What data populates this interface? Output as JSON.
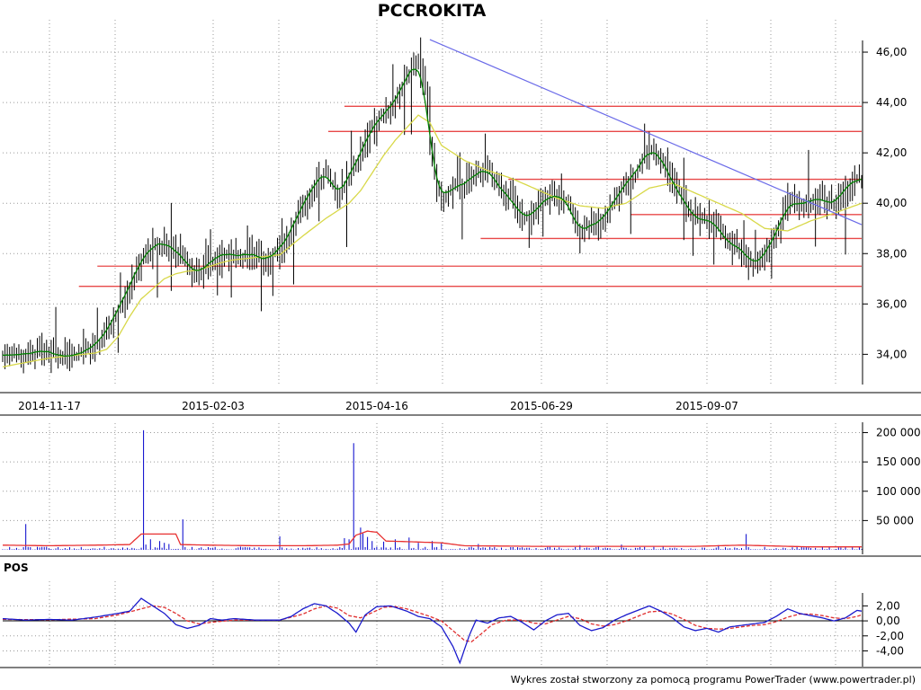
{
  "chart_data": [
    {
      "type": "candlestick",
      "title": "PCCROKITA",
      "x_tick_labels": [
        "2014-11-17",
        "2015-02-03",
        "2015-04-16",
        "2015-06-29",
        "2015-09-07"
      ],
      "y_tick_labels": [
        "34,00",
        "36,00",
        "38,00",
        "40,00",
        "42,00",
        "44,00",
        "46,00"
      ],
      "y_ticks": [
        34,
        36,
        38,
        40,
        42,
        44,
        46
      ],
      "ylim": [
        32.8,
        47.0
      ],
      "grid": true,
      "close_anchors": [
        [
          0,
          34.0
        ],
        [
          10,
          34.0
        ],
        [
          18,
          34.2
        ],
        [
          25,
          33.9
        ],
        [
          33,
          34.0
        ],
        [
          40,
          34.4
        ],
        [
          45,
          34.9
        ],
        [
          50,
          35.8
        ],
        [
          55,
          36.8
        ],
        [
          60,
          37.7
        ],
        [
          65,
          38.3
        ],
        [
          70,
          38.5
        ],
        [
          75,
          38.0
        ],
        [
          80,
          37.6
        ],
        [
          85,
          37.2
        ],
        [
          90,
          37.7
        ],
        [
          95,
          38.0
        ],
        [
          100,
          37.9
        ],
        [
          105,
          38.0
        ],
        [
          110,
          37.9
        ],
        [
          115,
          37.8
        ],
        [
          120,
          38.2
        ],
        [
          125,
          39.0
        ],
        [
          130,
          40.0
        ],
        [
          135,
          40.8
        ],
        [
          140,
          41.3
        ],
        [
          145,
          40.2
        ],
        [
          150,
          41.2
        ],
        [
          155,
          42.0
        ],
        [
          160,
          43.0
        ],
        [
          165,
          43.5
        ],
        [
          170,
          44.0
        ],
        [
          175,
          45.0
        ],
        [
          180,
          45.6
        ],
        [
          183,
          44.5
        ],
        [
          185,
          42.5
        ],
        [
          187,
          41.0
        ],
        [
          190,
          40.2
        ],
        [
          195,
          40.6
        ],
        [
          200,
          40.8
        ],
        [
          205,
          41.2
        ],
        [
          210,
          41.4
        ],
        [
          215,
          40.6
        ],
        [
          220,
          40.2
        ],
        [
          225,
          39.5
        ],
        [
          230,
          39.6
        ],
        [
          235,
          40.2
        ],
        [
          240,
          40.4
        ],
        [
          245,
          40.0
        ],
        [
          250,
          38.8
        ],
        [
          255,
          39.1
        ],
        [
          260,
          39.4
        ],
        [
          265,
          40.1
        ],
        [
          270,
          40.8
        ],
        [
          275,
          41.3
        ],
        [
          280,
          42.2
        ],
        [
          285,
          41.8
        ],
        [
          290,
          40.9
        ],
        [
          295,
          40.0
        ],
        [
          300,
          39.4
        ],
        [
          305,
          39.4
        ],
        [
          310,
          39.0
        ],
        [
          315,
          38.4
        ],
        [
          320,
          38.2
        ],
        [
          325,
          37.6
        ],
        [
          330,
          38.0
        ],
        [
          335,
          38.8
        ],
        [
          340,
          39.9
        ],
        [
          345,
          40.0
        ],
        [
          350,
          40.1
        ],
        [
          355,
          40.2
        ],
        [
          360,
          40.0
        ],
        [
          365,
          40.6
        ],
        [
          370,
          41.1
        ],
        [
          372,
          41.0
        ]
      ],
      "sma_long_anchors": [
        [
          0,
          33.5
        ],
        [
          20,
          33.85
        ],
        [
          40,
          34.05
        ],
        [
          45,
          34.2
        ],
        [
          50,
          34.7
        ],
        [
          55,
          35.5
        ],
        [
          60,
          36.2
        ],
        [
          65,
          36.6
        ],
        [
          70,
          37.0
        ],
        [
          75,
          37.2
        ],
        [
          80,
          37.3
        ],
        [
          85,
          37.35
        ],
        [
          90,
          37.5
        ],
        [
          95,
          37.65
        ],
        [
          100,
          37.75
        ],
        [
          110,
          37.85
        ],
        [
          120,
          37.95
        ],
        [
          130,
          38.7
        ],
        [
          140,
          39.4
        ],
        [
          150,
          40.0
        ],
        [
          155,
          40.5
        ],
        [
          160,
          41.2
        ],
        [
          165,
          41.9
        ],
        [
          170,
          42.5
        ],
        [
          175,
          43.0
        ],
        [
          180,
          43.5
        ],
        [
          185,
          43.2
        ],
        [
          190,
          42.3
        ],
        [
          200,
          41.7
        ],
        [
          210,
          41.3
        ],
        [
          220,
          41.0
        ],
        [
          230,
          40.6
        ],
        [
          240,
          40.2
        ],
        [
          250,
          39.9
        ],
        [
          260,
          39.8
        ],
        [
          270,
          40.0
        ],
        [
          280,
          40.6
        ],
        [
          290,
          40.8
        ],
        [
          300,
          40.4
        ],
        [
          310,
          40.0
        ],
        [
          320,
          39.6
        ],
        [
          330,
          39.0
        ],
        [
          340,
          38.9
        ],
        [
          350,
          39.3
        ],
        [
          360,
          39.6
        ],
        [
          372,
          40.0
        ]
      ],
      "support_levels": [
        {
          "y": 43.85,
          "x_from": 148,
          "x_to": 372
        },
        {
          "y": 42.85,
          "x_from": 141,
          "x_to": 372
        },
        {
          "y": 40.95,
          "x_from": 219,
          "x_to": 372
        },
        {
          "y": 39.55,
          "x_from": 272,
          "x_to": 372
        },
        {
          "y": 38.6,
          "x_from": 207,
          "x_to": 372
        },
        {
          "y": 37.5,
          "x_from": 41,
          "x_to": 372
        },
        {
          "y": 36.7,
          "x_from": 33,
          "x_to": 372
        }
      ],
      "trendline": {
        "x_from": 185,
        "y_from": 46.5,
        "x_to": 372,
        "y_to": 39.15
      },
      "colors": {
        "bars": "#000000",
        "sma_short": "#008000",
        "sma_long": "#d8d848",
        "support": "#e84848",
        "trendline": "#6a6ae8",
        "grid": "#999999"
      }
    },
    {
      "type": "bar",
      "y_tick_labels": [
        "50 000",
        "100 000",
        "150 000",
        "200 000"
      ],
      "y_ticks": [
        50000,
        100000,
        150000,
        200000
      ],
      "ylim": [
        0,
        210000
      ],
      "spikes": [
        [
          10,
          44000
        ],
        [
          61,
          204000
        ],
        [
          78,
          52000
        ],
        [
          152,
          182000
        ],
        [
          120,
          23000
        ],
        [
          155,
          38000
        ],
        [
          148,
          20000
        ],
        [
          322,
          27000
        ],
        [
          176,
          21000
        ],
        [
          62,
          9000
        ],
        [
          64,
          18000
        ],
        [
          68,
          15000
        ],
        [
          70,
          12000
        ],
        [
          72,
          10000
        ],
        [
          150,
          18000
        ],
        [
          156,
          28000
        ],
        [
          158,
          22000
        ],
        [
          160,
          15000
        ],
        [
          165,
          14000
        ],
        [
          170,
          18000
        ],
        [
          180,
          12000
        ],
        [
          186,
          15000
        ],
        [
          190,
          11000
        ],
        [
          206,
          10000
        ],
        [
          250,
          8000
        ],
        [
          268,
          9000
        ],
        [
          310,
          8000
        ]
      ],
      "volume_ma_anchors": [
        [
          0,
          8000
        ],
        [
          20,
          7000
        ],
        [
          40,
          8000
        ],
        [
          55,
          9000
        ],
        [
          60,
          27000
        ],
        [
          75,
          27000
        ],
        [
          77,
          9000
        ],
        [
          90,
          8000
        ],
        [
          110,
          7000
        ],
        [
          130,
          7000
        ],
        [
          145,
          8000
        ],
        [
          150,
          10000
        ],
        [
          153,
          25000
        ],
        [
          158,
          32000
        ],
        [
          162,
          30000
        ],
        [
          166,
          15000
        ],
        [
          175,
          14000
        ],
        [
          190,
          12000
        ],
        [
          200,
          7000
        ],
        [
          230,
          6000
        ],
        [
          260,
          6000
        ],
        [
          300,
          6000
        ],
        [
          320,
          8000
        ],
        [
          330,
          7000
        ],
        [
          350,
          5000
        ],
        [
          372,
          5000
        ]
      ],
      "colors": {
        "bars": "#0000cc",
        "ma": "#e83030",
        "grid": "#999999"
      }
    },
    {
      "type": "line",
      "panel_label": "POS",
      "y_tick_labels": [
        "2,00",
        "0,00",
        "-2,00",
        "-4,00"
      ],
      "y_ticks": [
        2,
        0,
        -2,
        -4
      ],
      "ylim": [
        -6.1,
        3.6
      ],
      "pos_anchors": [
        [
          0,
          0.3
        ],
        [
          10,
          0.1
        ],
        [
          20,
          0.2
        ],
        [
          30,
          0.1
        ],
        [
          40,
          0.5
        ],
        [
          50,
          1.0
        ],
        [
          55,
          1.3
        ],
        [
          60,
          3.0
        ],
        [
          65,
          2.0
        ],
        [
          70,
          1.0
        ],
        [
          75,
          -0.5
        ],
        [
          80,
          -1.0
        ],
        [
          85,
          -0.6
        ],
        [
          90,
          0.3
        ],
        [
          95,
          0.1
        ],
        [
          100,
          0.3
        ],
        [
          110,
          0.1
        ],
        [
          120,
          0.1
        ],
        [
          125,
          0.6
        ],
        [
          130,
          1.6
        ],
        [
          135,
          2.3
        ],
        [
          140,
          2.0
        ],
        [
          145,
          1.0
        ],
        [
          150,
          -0.3
        ],
        [
          153,
          -1.5
        ],
        [
          157,
          0.8
        ],
        [
          162,
          1.9
        ],
        [
          168,
          2.0
        ],
        [
          175,
          1.3
        ],
        [
          180,
          0.6
        ],
        [
          185,
          0.3
        ],
        [
          190,
          -0.8
        ],
        [
          195,
          -3.4
        ],
        [
          198,
          -5.6
        ],
        [
          202,
          -2.0
        ],
        [
          205,
          0.1
        ],
        [
          210,
          -0.3
        ],
        [
          215,
          0.4
        ],
        [
          220,
          0.6
        ],
        [
          225,
          -0.2
        ],
        [
          230,
          -1.2
        ],
        [
          235,
          0.0
        ],
        [
          240,
          0.8
        ],
        [
          245,
          1.0
        ],
        [
          250,
          -0.6
        ],
        [
          255,
          -1.3
        ],
        [
          260,
          -0.9
        ],
        [
          265,
          0.1
        ],
        [
          270,
          0.8
        ],
        [
          275,
          1.4
        ],
        [
          280,
          2.0
        ],
        [
          285,
          1.3
        ],
        [
          290,
          0.4
        ],
        [
          295,
          -0.8
        ],
        [
          300,
          -1.3
        ],
        [
          305,
          -1.0
        ],
        [
          310,
          -1.5
        ],
        [
          315,
          -0.8
        ],
        [
          320,
          -0.6
        ],
        [
          325,
          -0.4
        ],
        [
          330,
          -0.2
        ],
        [
          335,
          0.6
        ],
        [
          340,
          1.6
        ],
        [
          345,
          1.0
        ],
        [
          350,
          0.7
        ],
        [
          355,
          0.4
        ],
        [
          360,
          0.0
        ],
        [
          365,
          0.4
        ],
        [
          370,
          1.4
        ],
        [
          372,
          1.3
        ]
      ],
      "signal_anchors": [
        [
          0,
          0.2
        ],
        [
          20,
          0.15
        ],
        [
          40,
          0.3
        ],
        [
          50,
          0.8
        ],
        [
          60,
          1.6
        ],
        [
          65,
          2.0
        ],
        [
          70,
          1.8
        ],
        [
          75,
          1.0
        ],
        [
          80,
          0.0
        ],
        [
          85,
          -0.4
        ],
        [
          90,
          -0.2
        ],
        [
          100,
          0.1
        ],
        [
          120,
          0.1
        ],
        [
          130,
          0.9
        ],
        [
          135,
          1.6
        ],
        [
          140,
          2.0
        ],
        [
          145,
          1.7
        ],
        [
          150,
          0.7
        ],
        [
          155,
          0.4
        ],
        [
          160,
          1.1
        ],
        [
          165,
          1.8
        ],
        [
          170,
          1.9
        ],
        [
          175,
          1.6
        ],
        [
          180,
          1.1
        ],
        [
          185,
          0.6
        ],
        [
          190,
          0.0
        ],
        [
          195,
          -1.3
        ],
        [
          200,
          -2.6
        ],
        [
          203,
          -2.8
        ],
        [
          207,
          -1.8
        ],
        [
          212,
          -0.5
        ],
        [
          218,
          0.1
        ],
        [
          225,
          0.1
        ],
        [
          230,
          -0.3
        ],
        [
          235,
          -0.4
        ],
        [
          240,
          0.1
        ],
        [
          245,
          0.6
        ],
        [
          250,
          0.3
        ],
        [
          255,
          -0.4
        ],
        [
          260,
          -0.7
        ],
        [
          265,
          -0.5
        ],
        [
          270,
          0.0
        ],
        [
          275,
          0.6
        ],
        [
          280,
          1.2
        ],
        [
          285,
          1.3
        ],
        [
          290,
          0.9
        ],
        [
          295,
          0.2
        ],
        [
          300,
          -0.6
        ],
        [
          305,
          -1.0
        ],
        [
          310,
          -1.1
        ],
        [
          315,
          -1.0
        ],
        [
          320,
          -0.8
        ],
        [
          325,
          -0.6
        ],
        [
          330,
          -0.5
        ],
        [
          335,
          -0.1
        ],
        [
          340,
          0.5
        ],
        [
          345,
          0.9
        ],
        [
          350,
          0.9
        ],
        [
          355,
          0.7
        ],
        [
          360,
          0.4
        ],
        [
          365,
          0.3
        ],
        [
          370,
          0.6
        ],
        [
          372,
          0.8
        ]
      ],
      "colors": {
        "pos": "#1a1acc",
        "signal": "#e03030",
        "zero": "#000000",
        "grid": "#999999"
      }
    }
  ],
  "footer": "Wykres został stworzony za pomocą programu PowerTrader (www.powertrader.pl)"
}
